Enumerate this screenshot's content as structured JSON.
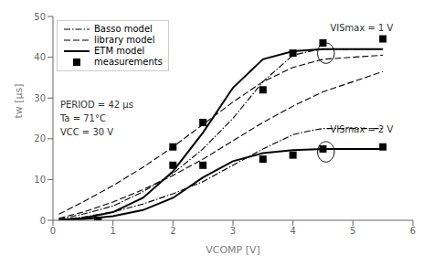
{
  "chart_data": {
    "type": "line",
    "x_label": "VCOMP [V]",
    "y_label": "tw [μs]",
    "xlim": [
      0,
      6
    ],
    "ylim": [
      0,
      50
    ],
    "xticks": [
      0,
      1,
      2,
      3,
      4,
      5,
      6
    ],
    "yticks": [
      0,
      10,
      20,
      30,
      40,
      50
    ],
    "color": "black",
    "grid": false,
    "legend": "upper left",
    "series": [
      {
        "name": "Basso model",
        "type": "line",
        "line_style": "dashdot",
        "x": [
          0.1,
          0.5,
          1.0,
          1.5,
          2.0,
          2.5,
          3.0,
          3.5,
          4.0,
          4.3,
          4.5,
          5.0,
          5.5
        ],
        "values": [
          0.3,
          1.5,
          3.5,
          7.0,
          11.5,
          17.5,
          25.0,
          34.0,
          40.5,
          41.5,
          42.0,
          42.0,
          42.0
        ]
      },
      {
        "name": "Basso model",
        "type": "line",
        "line_style": "dashdot",
        "x": [
          0.1,
          0.5,
          1.0,
          1.5,
          2.0,
          2.5,
          3.0,
          3.5,
          4.0,
          4.3,
          4.5,
          5.0,
          5.5
        ],
        "values": [
          0.15,
          0.8,
          2.0,
          4.0,
          6.5,
          9.5,
          13.5,
          17.5,
          21.0,
          22.0,
          22.5,
          22.5,
          22.5
        ]
      },
      {
        "name": "library model",
        "type": "line",
        "line_style": "dashed",
        "x": [
          0.1,
          0.5,
          1.0,
          1.5,
          2.0,
          2.5,
          3.0,
          3.5,
          4.0,
          4.5,
          5.0,
          5.5
        ],
        "values": [
          1.5,
          4.5,
          8.5,
          13.0,
          18.0,
          23.5,
          29.0,
          34.0,
          37.5,
          39.5,
          40.0,
          40.5
        ]
      },
      {
        "name": "library model",
        "type": "line",
        "line_style": "dashed",
        "x": [
          0.1,
          0.5,
          1.0,
          1.5,
          2.0,
          2.5,
          3.0,
          3.5,
          4.0,
          4.5,
          5.0,
          5.5
        ],
        "values": [
          0.5,
          2.0,
          4.5,
          7.5,
          11.0,
          15.0,
          19.5,
          24.0,
          28.0,
          31.5,
          34.0,
          36.5
        ]
      },
      {
        "name": "ETM model",
        "type": "line",
        "line_style": "solid",
        "x": [
          0.1,
          0.5,
          1.0,
          1.5,
          2.0,
          2.5,
          3.0,
          3.5,
          4.0,
          4.5,
          5.0,
          5.5
        ],
        "values": [
          0.1,
          0.5,
          2.0,
          5.5,
          12.0,
          21.5,
          32.5,
          39.5,
          41.5,
          42.0,
          42.0,
          42.0
        ]
      },
      {
        "name": "ETM model",
        "type": "line",
        "line_style": "solid",
        "x": [
          0.1,
          0.5,
          1.0,
          1.5,
          2.0,
          2.5,
          3.0,
          3.5,
          4.0,
          4.5,
          5.0,
          5.5
        ],
        "values": [
          0.1,
          0.3,
          1.0,
          2.5,
          5.5,
          10.5,
          14.5,
          16.5,
          17.2,
          17.5,
          17.5,
          17.5
        ]
      },
      {
        "name": "measurements",
        "type": "scatter",
        "marker": "square",
        "x": [
          0.75,
          2.0,
          2.5,
          3.5,
          4.0,
          4.5,
          5.5
        ],
        "values": [
          0.0,
          18.0,
          24.0,
          32.0,
          41.0,
          43.5,
          44.5
        ]
      },
      {
        "name": "measurements",
        "type": "scatter",
        "marker": "square",
        "x": [
          0.75,
          2.0,
          2.5,
          3.5,
          4.0,
          4.5,
          5.5
        ],
        "values": [
          0.0,
          13.5,
          13.5,
          15.0,
          16.0,
          17.5,
          18.0
        ]
      }
    ],
    "ellipses": [
      {
        "x": 4.55,
        "y": 41.0,
        "width": 0.28,
        "height": 5.0
      },
      {
        "x": 4.55,
        "y": 16.8,
        "width": 0.28,
        "height": 5.0
      }
    ],
    "annotations": [
      {
        "text": "VISmax = 1 V",
        "x": 4.62,
        "y": 48.5
      },
      {
        "text": "VISmax = 2 V",
        "x": 4.62,
        "y": 23.5
      },
      {
        "text": "PERIOD = 42 μs\nTa = 71°C\nVCC = 30 V",
        "x": 0.12,
        "y": 29.5
      }
    ]
  }
}
